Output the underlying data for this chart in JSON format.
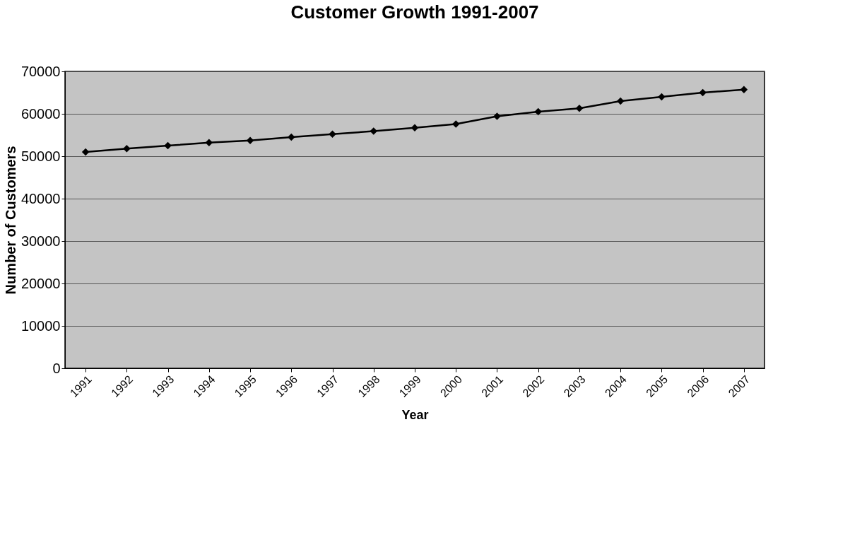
{
  "chart_data": {
    "type": "line",
    "title": "Customer Growth 1991-2007",
    "xlabel": "Year",
    "ylabel": "Number of Customers",
    "categories": [
      "1991",
      "1992",
      "1993",
      "1994",
      "1995",
      "1996",
      "1997",
      "1998",
      "1999",
      "2000",
      "2001",
      "2002",
      "2003",
      "2004",
      "2005",
      "2006",
      "2007"
    ],
    "series": [
      {
        "color": "#000000",
        "values": [
          51000,
          51800,
          52500,
          53200,
          53700,
          54500,
          55200,
          55900,
          56700,
          57600,
          59400,
          60500,
          61300,
          63000,
          64000,
          65000,
          65700
        ]
      }
    ],
    "ylim": [
      0,
      70000
    ],
    "yticks": [
      0,
      10000,
      20000,
      30000,
      40000,
      50000,
      60000,
      70000
    ],
    "grid": "y",
    "marker": "diamond",
    "line_style": "solid"
  }
}
